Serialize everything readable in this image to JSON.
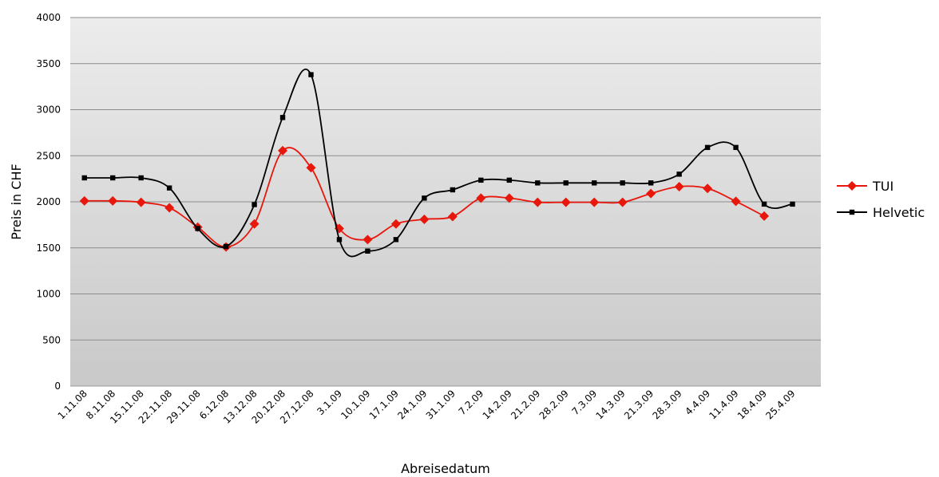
{
  "chart_data": {
    "type": "line",
    "title": "",
    "xlabel": "Abreisedatum",
    "ylabel": "Preis in CHF",
    "ylim": [
      0,
      4000
    ],
    "yticks": [
      0,
      500,
      1000,
      1500,
      2000,
      2500,
      3000,
      3500,
      4000
    ],
    "grid": true,
    "legend_position": "right",
    "categories": [
      "1.11.08",
      "8.11.08",
      "15.11.08",
      "22.11.08",
      "29.11.08",
      "6.12.08",
      "13.12.08",
      "20.12.08",
      "27.12.08",
      "3.1.09",
      "10.1.09",
      "17.1.09",
      "24.1.09",
      "31.1.09",
      "7.2.09",
      "14.2.09",
      "21.2.09",
      "28.2.09",
      "7.3.09",
      "14.3.09",
      "21.3.09",
      "28.3.09",
      "4.4.09",
      "11.4.09",
      "18.4.09",
      "25.4.09"
    ],
    "series": [
      {
        "name": "TUI",
        "color": "#e8170c",
        "marker": "diamond",
        "values": [
          2010,
          2010,
          1995,
          1935,
          1725,
          1510,
          1760,
          2555,
          2370,
          1710,
          1590,
          1760,
          1810,
          1840,
          2040,
          2040,
          1995,
          1995,
          1995,
          1995,
          2090,
          2165,
          2145,
          2005,
          1845,
          null
        ]
      },
      {
        "name": "Helvetic",
        "color": "#000000",
        "marker": "square",
        "values": [
          2260,
          2260,
          2260,
          2150,
          1710,
          1515,
          1970,
          2915,
          3380,
          1590,
          1465,
          1590,
          2040,
          2130,
          2235,
          2235,
          2205,
          2205,
          2205,
          2205,
          2205,
          2300,
          2590,
          2590,
          1975,
          1975
        ]
      }
    ]
  }
}
